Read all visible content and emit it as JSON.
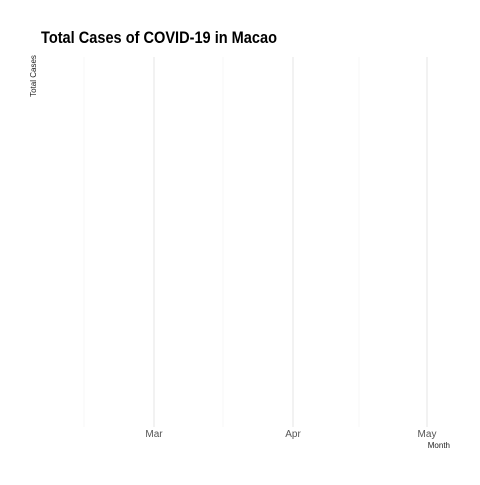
{
  "chart_data": {
    "type": "line",
    "title": "Total Cases of COVID-19 in Macao",
    "xlabel": "Month",
    "ylabel": "Total Cases",
    "x_ticks": [
      "Mar",
      "Apr",
      "May"
    ],
    "grid": true,
    "series": []
  }
}
